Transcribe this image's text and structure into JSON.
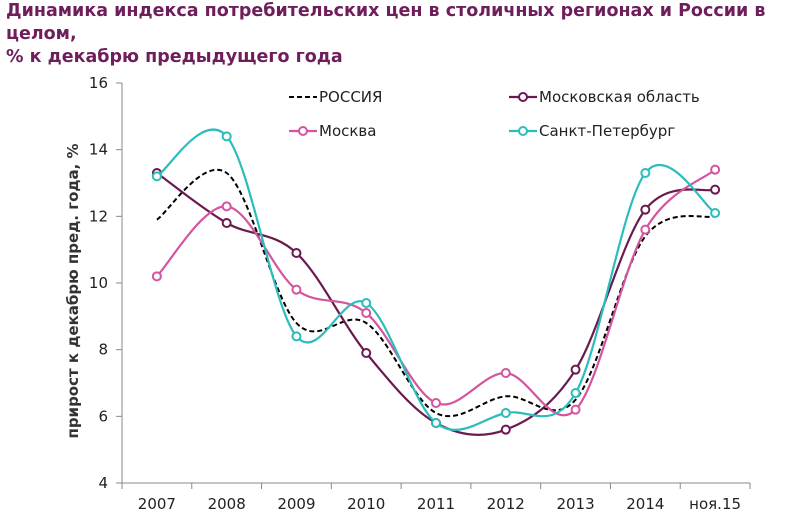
{
  "title_line1": "Динамика индекса потребительских цен в столичных регионах и России в целом,",
  "title_line2": "% к декабрю предыдущего года",
  "chart_data": {
    "type": "line",
    "title": "Динамика индекса потребительских цен в столичных регионах и России в целом, % к декабрю предыдущего года",
    "xlabel": "",
    "ylabel": "прирост к декабрю пред. года, %",
    "categories": [
      "2007",
      "2008",
      "2009",
      "2010",
      "2011",
      "2012",
      "2013",
      "2014",
      "ноя.15"
    ],
    "ylim": [
      4,
      16
    ],
    "yticks": [
      4,
      6,
      8,
      10,
      12,
      14,
      16
    ],
    "grid": false,
    "legend_position": "top",
    "series": [
      {
        "name": "РОССИЯ",
        "values": [
          11.9,
          13.3,
          8.8,
          8.8,
          6.1,
          6.6,
          6.5,
          11.4,
          12.0
        ],
        "color": "#000000",
        "dashed": true,
        "markers": false
      },
      {
        "name": "Московская область",
        "values": [
          13.3,
          11.8,
          10.9,
          7.9,
          5.8,
          5.6,
          7.4,
          12.2,
          12.8
        ],
        "color": "#6b1a4f",
        "dashed": false,
        "markers": true
      },
      {
        "name": "Москва",
        "values": [
          10.2,
          12.3,
          9.8,
          9.1,
          6.4,
          7.3,
          6.2,
          11.6,
          13.4
        ],
        "color": "#d3559f",
        "dashed": false,
        "markers": true
      },
      {
        "name": "Санкт-Петербург",
        "values": [
          13.2,
          14.4,
          8.4,
          9.4,
          5.8,
          6.1,
          6.7,
          13.3,
          12.1
        ],
        "color": "#2dbcbc",
        "dashed": false,
        "markers": true
      }
    ]
  }
}
